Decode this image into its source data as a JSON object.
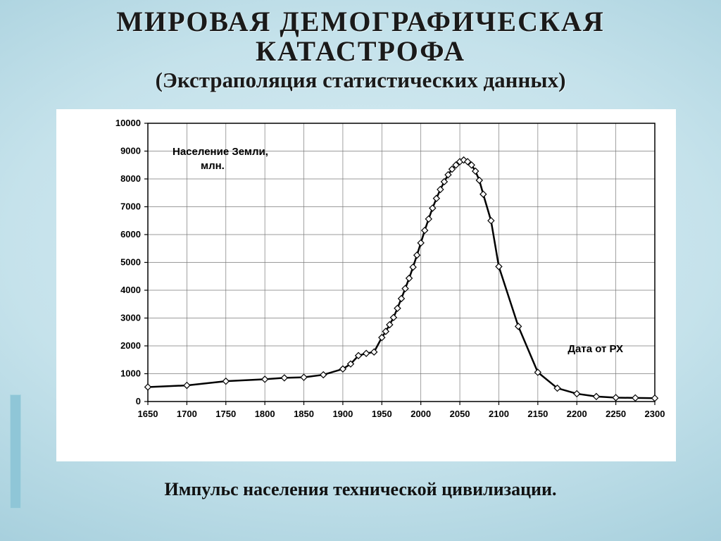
{
  "title_line1": "МИРОВАЯ  ДЕМОГРАФИЧЕСКАЯ",
  "title_line2": "КАТАСТРОФА",
  "subtitle": "(Экстраполяция статистических данных)",
  "caption": "Импульс населения технической цивилизации.",
  "chart": {
    "type": "line",
    "y_axis_label_line1": "Население Земли,",
    "y_axis_label_line2": "млн.",
    "x_axis_label": "Дата от РХ",
    "background_color": "#ffffff",
    "grid_color": "#7a7a7a",
    "axis_color": "#000000",
    "line_color": "#000000",
    "line_width": 2.5,
    "marker_style": "diamond",
    "marker_size": 7,
    "marker_fill": "#ffffff",
    "marker_stroke": "#000000",
    "marker_stroke_width": 1.2,
    "tick_font_size": 13,
    "tick_font_weight": "bold",
    "label_font_size": 15,
    "label_font_weight": "bold",
    "ylim": [
      0,
      10000
    ],
    "ytick_step": 1000,
    "yticks": [
      0,
      1000,
      2000,
      3000,
      4000,
      5000,
      6000,
      7000,
      8000,
      9000,
      10000
    ],
    "xlim": [
      1650,
      2300
    ],
    "xtick_step": 50,
    "xticks": [
      1650,
      1700,
      1750,
      1800,
      1850,
      1900,
      1950,
      2000,
      2050,
      2100,
      2150,
      2200,
      2250,
      2300
    ],
    "x": [
      1650,
      1700,
      1750,
      1800,
      1825,
      1850,
      1875,
      1900,
      1910,
      1920,
      1930,
      1940,
      1950,
      1955,
      1960,
      1965,
      1970,
      1975,
      1980,
      1985,
      1990,
      1995,
      2000,
      2005,
      2010,
      2015,
      2020,
      2025,
      2030,
      2035,
      2040,
      2045,
      2050,
      2055,
      2060,
      2065,
      2070,
      2075,
      2080,
      2090,
      2100,
      2125,
      2150,
      2175,
      2200,
      2225,
      2250,
      2275,
      2300
    ],
    "y": [
      520,
      580,
      730,
      800,
      850,
      870,
      960,
      1170,
      1350,
      1650,
      1730,
      1780,
      2300,
      2520,
      2760,
      3020,
      3350,
      3700,
      4060,
      4430,
      4830,
      5260,
      5700,
      6150,
      6560,
      6950,
      7300,
      7620,
      7900,
      8150,
      8350,
      8500,
      8620,
      8680,
      8620,
      8500,
      8280,
      7950,
      7450,
      6500,
      4850,
      2700,
      1050,
      480,
      280,
      180,
      140,
      130,
      120
    ]
  }
}
